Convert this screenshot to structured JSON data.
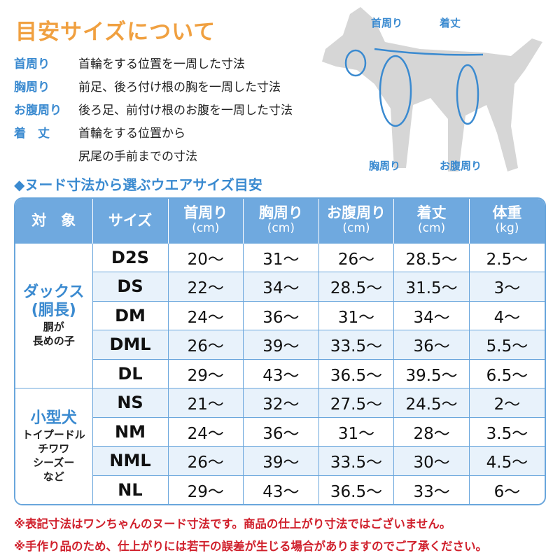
{
  "title": "目安サイズについて",
  "definitions": [
    {
      "term": "首周り",
      "desc": "首輪をする位置を一周した寸法"
    },
    {
      "term": "胸周り",
      "desc": "前足、後ろ付け根の胸を一周した寸法"
    },
    {
      "term": "お腹周り",
      "desc": "後ろ足、前付け根のお腹を一周した寸法"
    },
    {
      "term": "着　丈",
      "desc": "首輪をする位置から",
      "desc2": "尻尾の手前までの寸法"
    }
  ],
  "diagram_labels": {
    "neck": "首周り",
    "length": "着丈",
    "chest": "胸周り",
    "belly": "お腹周り"
  },
  "subtitle": "◆ヌード寸法から選ぶウエアサイズ目安",
  "table": {
    "headers": [
      {
        "l": "対　象"
      },
      {
        "l": "サイズ"
      },
      {
        "l": "首周り",
        "u": "(cm)"
      },
      {
        "l": "胸周り",
        "u": "(cm)"
      },
      {
        "l": "お腹周り",
        "u": "(cm)"
      },
      {
        "l": "着丈",
        "u": "(cm)"
      },
      {
        "l": "体重",
        "u": "(kg)"
      }
    ],
    "groups": [
      {
        "name": "ダックス",
        "name2": "(胴長)",
        "note": "胴が",
        "note2": "長めの子"
      },
      {
        "name": "小型犬",
        "note": "トイプードル",
        "note2": "チワワ",
        "note3": "シーズー",
        "note4": "など"
      }
    ],
    "rows": [
      [
        "D2S",
        "20～",
        "31～",
        "26～",
        "28.5～",
        "2.5～"
      ],
      [
        "DS",
        "22～",
        "34～",
        "28.5～",
        "31.5～",
        "3～"
      ],
      [
        "DM",
        "24～",
        "36～",
        "31～",
        "34～",
        "4～"
      ],
      [
        "DML",
        "26～",
        "39～",
        "33.5～",
        "36～",
        "5.5～"
      ],
      [
        "DL",
        "29～",
        "43～",
        "36.5～",
        "39.5～",
        "6.5～"
      ],
      [
        "NS",
        "21～",
        "32～",
        "27.5～",
        "24.5～",
        "2～"
      ],
      [
        "NM",
        "24～",
        "36～",
        "31～",
        "28～",
        "3.5～"
      ],
      [
        "NML",
        "26～",
        "39～",
        "33.5～",
        "30～",
        "4.5～"
      ],
      [
        "NL",
        "29～",
        "43～",
        "36.5～",
        "33～",
        "6～"
      ]
    ]
  },
  "notes": [
    "※表記寸法はワンちゃんのヌード寸法です。商品の仕上がり寸法ではございません。",
    "※手作り品のため、仕上がりには若干の誤差が生じる場合がありますのでご了承ください。"
  ]
}
